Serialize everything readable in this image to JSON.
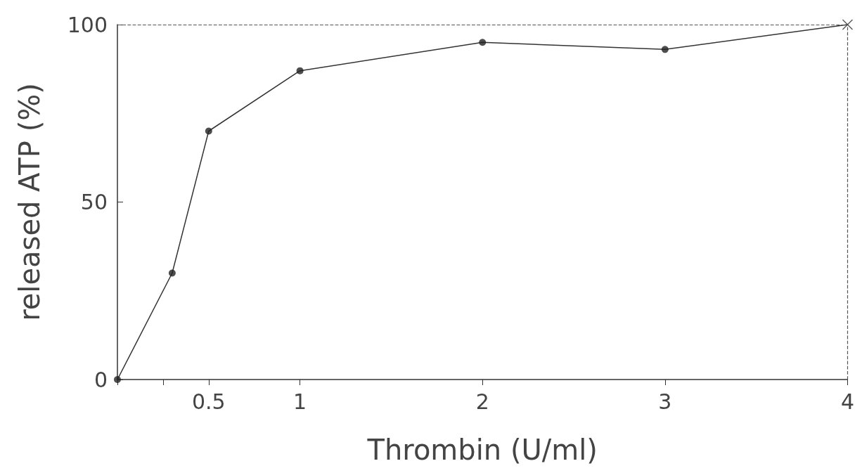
{
  "chart_data": {
    "type": "line",
    "xlabel": "Thrombin (U/ml)",
    "ylabel": "released ATP (%)",
    "xlim": [
      0,
      4
    ],
    "xticks": [
      {
        "value": 0,
        "label": null
      },
      {
        "value": 0.25,
        "label": null
      },
      0.5,
      1,
      2,
      3,
      4
    ],
    "ylim": [
      0,
      100
    ],
    "yticks": [
      0,
      50,
      100
    ],
    "grid": false,
    "series": [
      {
        "color": "#333333",
        "marker": "none",
        "x": [
          0,
          0.3,
          0.5,
          1,
          2,
          3,
          4
        ],
        "values": [
          0,
          30,
          70,
          87,
          95,
          93,
          100
        ]
      },
      {
        "type": "scatter",
        "color": "#222222",
        "marker": "circle",
        "x": [
          0,
          0.3,
          0.5,
          1,
          2,
          3
        ],
        "values": [
          0,
          30,
          70,
          87,
          95,
          93
        ]
      },
      {
        "type": "scatter",
        "color": "#333333",
        "marker": "cross",
        "x": [
          4
        ],
        "values": [
          100
        ]
      }
    ],
    "ref_lines": [
      {
        "axis": "y",
        "value": 100,
        "line_style": "dashed",
        "color": "#555555"
      },
      {
        "axis": "x",
        "value": 4,
        "line_style": "dashed",
        "color": "#555555"
      }
    ]
  }
}
